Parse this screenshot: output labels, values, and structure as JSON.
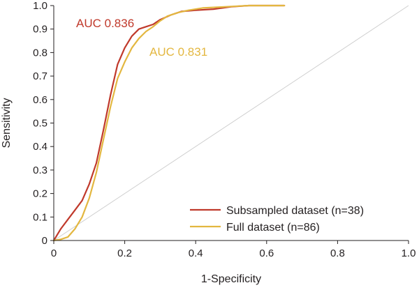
{
  "chart_data": {
    "type": "line",
    "title": "",
    "xlabel": "1-Specificity",
    "ylabel": "Sensitivity",
    "xlim": [
      0,
      1
    ],
    "ylim": [
      0,
      1
    ],
    "x_ticks": [
      "0",
      "0.2",
      "0.4",
      "0.6",
      "0.8",
      "1.0"
    ],
    "y_ticks": [
      "0",
      "0.1",
      "0.2",
      "0.3",
      "0.4",
      "0.5",
      "0.6",
      "0.7",
      "0.8",
      "0.9",
      "1.0"
    ],
    "grid": false,
    "legend_position": "bottom-right",
    "reference_line": {
      "name": "chance",
      "x": [
        0,
        1
      ],
      "y": [
        0,
        1
      ],
      "color": "#cccccc"
    },
    "series": [
      {
        "name": "Subsampled dataset (n=38)",
        "color": "#c0392b",
        "auc_label": "AUC 0.836",
        "x": [
          0,
          0.02,
          0.04,
          0.06,
          0.08,
          0.1,
          0.12,
          0.14,
          0.16,
          0.18,
          0.2,
          0.22,
          0.24,
          0.26,
          0.28,
          0.3,
          0.33,
          0.36,
          0.4,
          0.45,
          0.5,
          0.55,
          0.6,
          0.65
        ],
        "y": [
          0,
          0.05,
          0.09,
          0.13,
          0.17,
          0.24,
          0.33,
          0.47,
          0.62,
          0.75,
          0.82,
          0.87,
          0.9,
          0.91,
          0.92,
          0.94,
          0.96,
          0.975,
          0.98,
          0.985,
          0.995,
          1.0,
          1.0,
          1.0
        ]
      },
      {
        "name": "Full dataset (n=86)",
        "color": "#e3b740",
        "auc_label": "AUC 0.831",
        "x": [
          0,
          0.02,
          0.04,
          0.06,
          0.08,
          0.1,
          0.12,
          0.14,
          0.16,
          0.18,
          0.2,
          0.22,
          0.24,
          0.26,
          0.28,
          0.3,
          0.32,
          0.35,
          0.38,
          0.42,
          0.46,
          0.5,
          0.55,
          0.6,
          0.65
        ],
        "y": [
          0,
          0.005,
          0.015,
          0.05,
          0.1,
          0.18,
          0.29,
          0.43,
          0.57,
          0.69,
          0.76,
          0.82,
          0.86,
          0.89,
          0.91,
          0.935,
          0.955,
          0.97,
          0.98,
          0.99,
          0.993,
          0.996,
          1.0,
          1.0,
          1.0
        ]
      }
    ]
  }
}
